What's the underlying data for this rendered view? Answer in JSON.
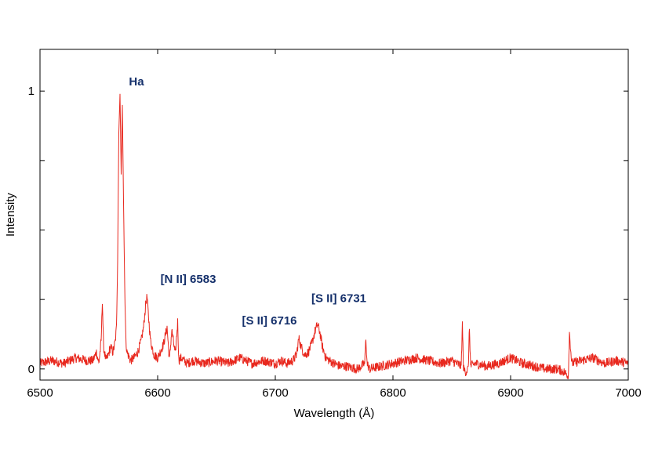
{
  "chart_data": {
    "type": "line",
    "title": "",
    "xlabel": "Wavelength (Å)",
    "ylabel": "Intensity",
    "xlim": [
      6500,
      7000
    ],
    "ylim": [
      -0.04,
      1.15
    ],
    "x_ticks": [
      6500,
      6600,
      6700,
      6800,
      6900,
      7000
    ],
    "x_tick_labels": [
      "6500",
      "6600",
      "6700",
      "6800",
      "6900",
      "7000"
    ],
    "y_ticks": [
      0,
      0.25,
      0.5,
      0.75,
      1
    ],
    "y_tick_labels": [
      "0",
      "",
      "",
      "",
      "1"
    ],
    "grid": false,
    "series": [
      {
        "color": "#e8281e",
        "x": [
          6500,
          6510,
          6520,
          6530,
          6540,
          6545,
          6548,
          6550,
          6552,
          6553,
          6554,
          6556,
          6558,
          6560,
          6562,
          6564,
          6565,
          6566,
          6567,
          6568,
          6569,
          6570,
          6571,
          6572,
          6573,
          6574,
          6575,
          6577,
          6580,
          6583,
          6586,
          6588,
          6590,
          6591,
          6592,
          6594,
          6597,
          6600,
          6605,
          6608,
          6610,
          6612,
          6615,
          6617,
          6618,
          6620,
          6625,
          6630,
          6640,
          6650,
          6660,
          6670,
          6680,
          6690,
          6700,
          6705,
          6710,
          6715,
          6718,
          6720,
          6722,
          6725,
          6728,
          6731,
          6734,
          6736,
          6738,
          6740,
          6743,
          6746,
          6750,
          6755,
          6760,
          6770,
          6776,
          6777,
          6778,
          6780,
          6790,
          6800,
          6810,
          6820,
          6830,
          6840,
          6850,
          6858,
          6859,
          6860,
          6862,
          6864,
          6865,
          6866,
          6870,
          6880,
          6890,
          6900,
          6905,
          6910,
          6920,
          6930,
          6940,
          6945,
          6948,
          6949,
          6950,
          6952,
          6960,
          6970,
          6980,
          6990,
          7000
        ],
        "y": [
          0.02,
          0.03,
          0.02,
          0.04,
          0.03,
          0.03,
          0.06,
          0.02,
          0.1,
          0.25,
          0.08,
          0.03,
          0.05,
          0.08,
          0.06,
          0.1,
          0.15,
          0.4,
          0.85,
          0.99,
          0.7,
          0.95,
          0.6,
          0.3,
          0.1,
          0.06,
          0.05,
          0.03,
          0.04,
          0.06,
          0.1,
          0.15,
          0.24,
          0.26,
          0.2,
          0.1,
          0.05,
          0.04,
          0.09,
          0.15,
          0.03,
          0.14,
          0.05,
          0.17,
          0.03,
          0.04,
          0.02,
          0.03,
          0.02,
          0.03,
          0.02,
          0.04,
          0.02,
          0.03,
          0.02,
          0.03,
          0.02,
          0.03,
          0.05,
          0.11,
          0.08,
          0.05,
          0.06,
          0.09,
          0.14,
          0.16,
          0.13,
          0.08,
          0.04,
          0.03,
          0.02,
          0.01,
          0.01,
          0.0,
          0.02,
          0.11,
          0.02,
          0.0,
          0.01,
          0.02,
          0.03,
          0.04,
          0.03,
          0.02,
          0.03,
          0.01,
          0.16,
          0.0,
          -0.01,
          0.0,
          0.15,
          0.01,
          0.02,
          0.01,
          0.02,
          0.04,
          0.03,
          0.02,
          0.01,
          0.0,
          0.0,
          -0.01,
          -0.02,
          -0.03,
          0.13,
          0.02,
          0.03,
          0.04,
          0.02,
          0.03,
          0.02
        ]
      }
    ],
    "annotations": [
      {
        "text": "Ha",
        "x": 6582,
        "y": 1.02
      },
      {
        "text": "[N II] 6583",
        "x": 6626,
        "y": 0.31
      },
      {
        "text": "[S II] 6716",
        "x": 6695,
        "y": 0.16
      },
      {
        "text": "[S II] 6731",
        "x": 6754,
        "y": 0.24
      }
    ]
  }
}
